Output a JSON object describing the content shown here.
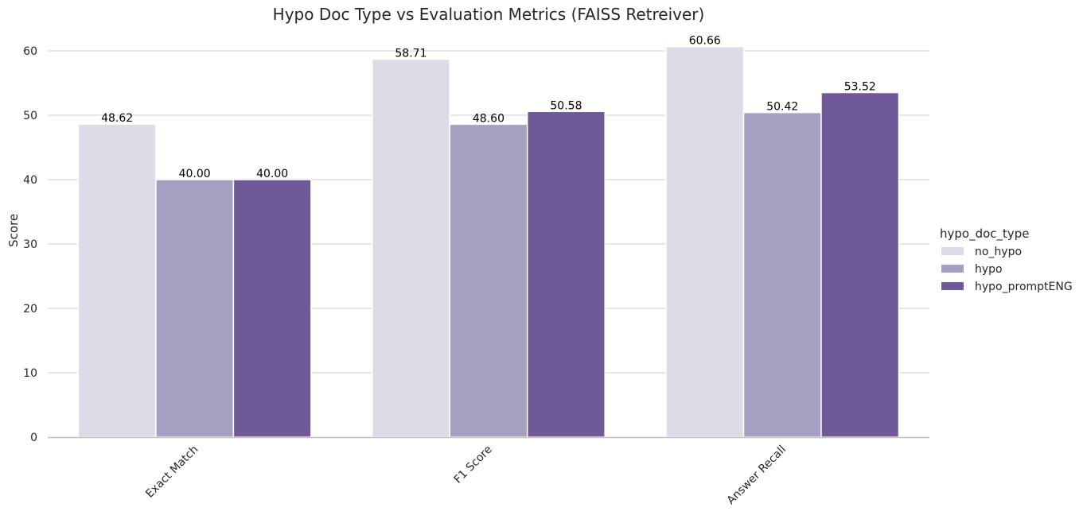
{
  "chart_data": {
    "type": "bar",
    "title": "Hypo Doc Type vs Evaluation Metrics (FAISS Retreiver)",
    "xlabel": "",
    "ylabel": "Score",
    "ylim": [
      0,
      63
    ],
    "yticks": [
      "0",
      "10",
      "20",
      "30",
      "40",
      "50",
      "60"
    ],
    "grid": "horizontal",
    "legend": {
      "title": "hypo_doc_type",
      "placement": "right"
    },
    "categories": [
      "Exact Match",
      "F1 Score",
      "Answer Recall"
    ],
    "series": [
      {
        "name": "no_hypo",
        "color": "#dcdce9",
        "values": [
          48.62,
          58.71,
          60.66
        ],
        "labels": [
          "48.62",
          "58.71",
          "60.66"
        ]
      },
      {
        "name": "hypo",
        "color": "#a3a0c2",
        "values": [
          40.0,
          48.6,
          50.42
        ],
        "labels": [
          "40.00",
          "48.60",
          "50.42"
        ]
      },
      {
        "name": "hypo_promptENG",
        "color": "#6e5a97",
        "values": [
          40.0,
          50.58,
          53.52
        ],
        "labels": [
          "40.00",
          "50.58",
          "53.52"
        ]
      }
    ]
  }
}
